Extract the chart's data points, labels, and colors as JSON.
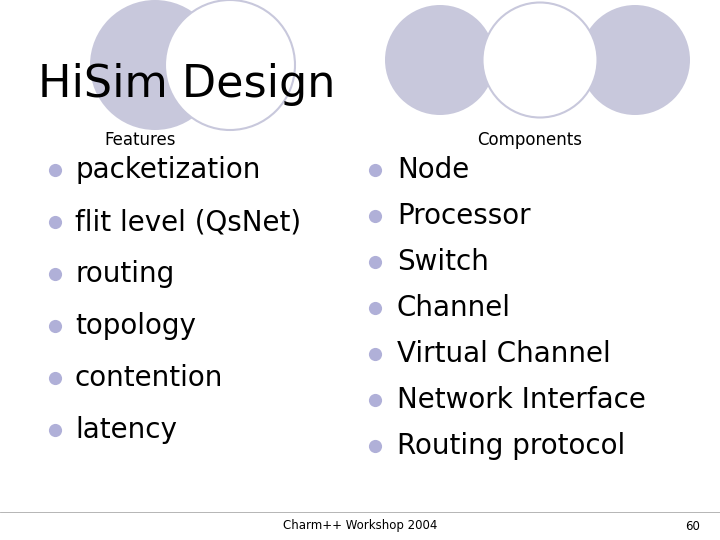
{
  "title": "HiSim Design",
  "bg_color": "#ffffff",
  "features_label": "Features",
  "components_label": "Components",
  "bullet_color": "#b0b0d8",
  "features": [
    "packetization",
    "flit level (QsNet)",
    "routing",
    "topology",
    "contention",
    "latency"
  ],
  "components": [
    "Node",
    "Processor",
    "Switch",
    "Channel",
    "Virtual Channel",
    "Network Interface",
    "Routing protocol"
  ],
  "footer_text": "Charm++ Workshop 2004",
  "footer_page": "60",
  "ellipse_filled": "#c8c8dc",
  "ellipse_outline": "#c8c8dc",
  "ellipse_outline_fc": "#ffffff"
}
